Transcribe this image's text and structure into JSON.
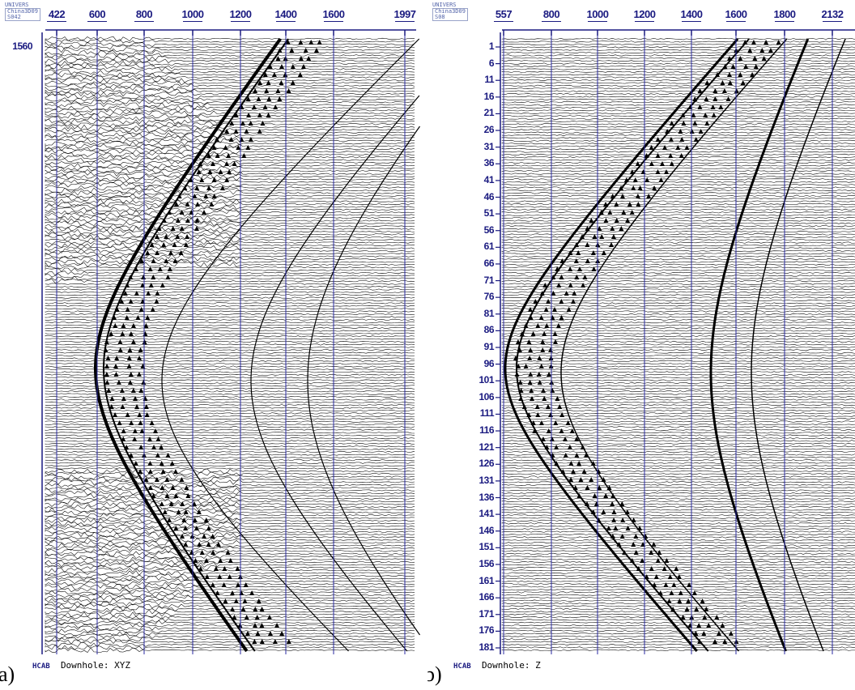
{
  "panels": [
    {
      "id": "a",
      "label": "a)",
      "header": {
        "line1": "UNIVERS",
        "line2": "China3D09",
        "line3": "S042"
      },
      "x_ticks": [
        "422",
        "600",
        "800",
        "1000",
        "1200",
        "1400",
        "1600",
        "1997"
      ],
      "y_label": "1560",
      "caption": {
        "tool": "HCAB",
        "text": "Downhole: XYZ"
      }
    },
    {
      "id": "b",
      "label": "b)",
      "header": {
        "line1": "UNIVERS",
        "line2": "China3D09",
        "line3": "S08"
      },
      "x_ticks": [
        "557",
        "800",
        "1000",
        "1200",
        "1400",
        "1600",
        "1800",
        "2132"
      ],
      "y_ticks": [
        "1",
        "6",
        "11",
        "16",
        "21",
        "26",
        "31",
        "36",
        "41",
        "46",
        "51",
        "56",
        "61",
        "66",
        "71",
        "76",
        "81",
        "86",
        "91",
        "96",
        "101",
        "106",
        "111",
        "116",
        "121",
        "126",
        "131",
        "136",
        "141",
        "146",
        "151",
        "156",
        "161",
        "166",
        "171",
        "176",
        "181"
      ],
      "caption": {
        "tool": "HCAB",
        "text": "Downhole: Z"
      }
    }
  ],
  "colors": {
    "axis": "#1a1a80",
    "gridline": "#2a2aa0",
    "trace": "#000000"
  }
}
